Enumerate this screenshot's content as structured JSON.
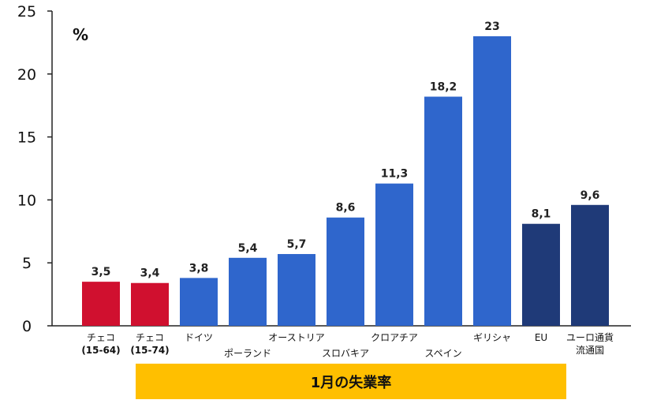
{
  "chart_data": {
    "type": "bar",
    "title": "1月の失業率",
    "unit": "%",
    "ylim": [
      0,
      25
    ],
    "yticks": [
      "0",
      "5",
      "10",
      "15",
      "20",
      "25"
    ],
    "grid": false,
    "categories": [
      "チェコ\n(15-64)",
      "チェコ\n(15-74)",
      "ドイツ",
      "ポーランド",
      "オーストリア",
      "スロバキア",
      "クロアチア",
      "スペイン",
      "ギリシャ",
      "EU",
      "ユーロ通貨\n流通国"
    ],
    "values": [
      3.5,
      3.4,
      3.8,
      5.4,
      5.7,
      8.6,
      11.3,
      18.2,
      23,
      8.1,
      9.6
    ],
    "value_labels": [
      "3,5",
      "3,4",
      "3,8",
      "5,4",
      "5,7",
      "8,6",
      "11,3",
      "18,2",
      "23",
      "8,1",
      "9,6"
    ],
    "bar_colors": [
      "#d0102f",
      "#d0102f",
      "#2f66cc",
      "#2f66cc",
      "#2f66cc",
      "#2f66cc",
      "#2f66cc",
      "#2f66cc",
      "#2f66cc",
      "#1f3a78",
      "#1f3a78"
    ]
  }
}
